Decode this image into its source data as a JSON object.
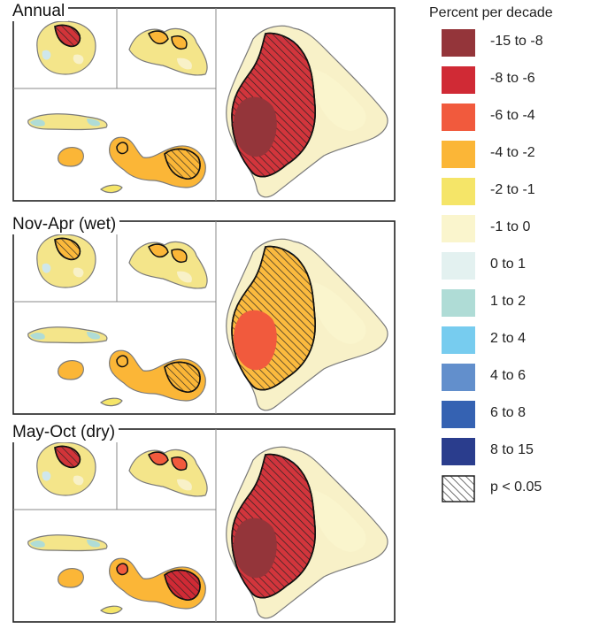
{
  "panels": [
    {
      "title": "Annual"
    },
    {
      "title": "Nov-Apr (wet)"
    },
    {
      "title": "May-Oct (dry)"
    }
  ],
  "legend": {
    "title": "Percent per decade",
    "items": [
      {
        "label": "-15 to -8",
        "color": "#94353a"
      },
      {
        "label": "-8 to -6",
        "color": "#d02a35"
      },
      {
        "label": "-6 to -4",
        "color": "#f15a3d"
      },
      {
        "label": "-4 to -2",
        "color": "#fbb637"
      },
      {
        "label": "-2 to -1",
        "color": "#f5e568"
      },
      {
        "label": "-1 to 0",
        "color": "#faf5cd"
      },
      {
        "label": "0 to 1",
        "color": "#e3f1f0"
      },
      {
        "label": "1 to 2",
        "color": "#afdcd6"
      },
      {
        "label": "2 to 4",
        "color": "#77ccef"
      },
      {
        "label": "4 to 6",
        "color": "#628fcc"
      },
      {
        "label": "6 to 8",
        "color": "#3562b2"
      },
      {
        "label": "8 to 15",
        "color": "#2a3d8d"
      },
      {
        "label": "p < 0.05",
        "icon": "hatch-icon"
      }
    ]
  }
}
